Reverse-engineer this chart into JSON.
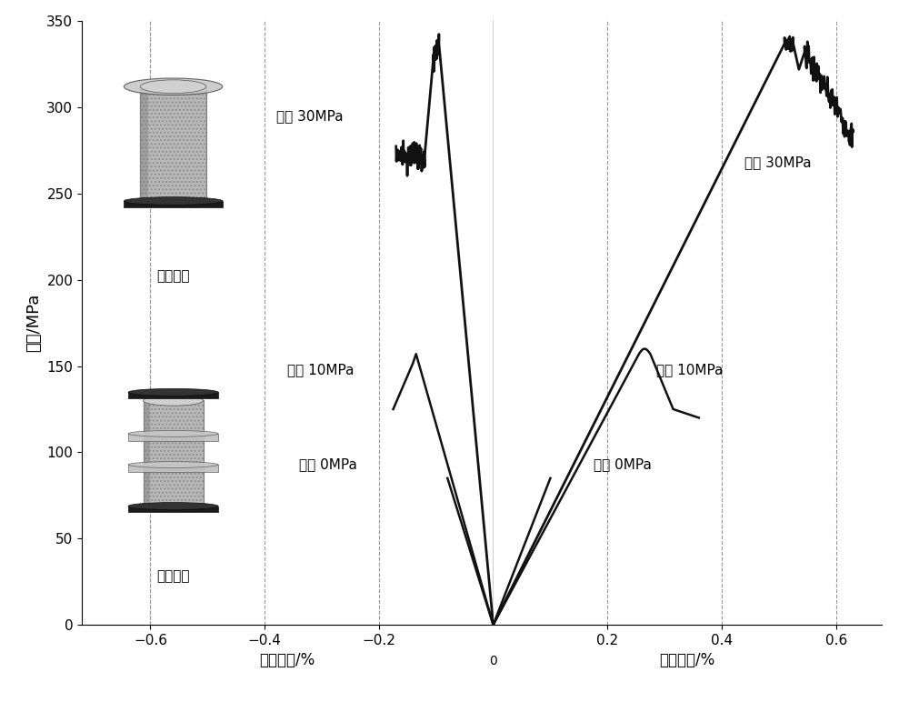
{
  "title": "",
  "ylabel": "应力/MPa",
  "xlabel_left": "侧向应变/%",
  "xlabel_right": "轴向应变/%",
  "ylim": [
    0,
    350
  ],
  "xlim_left": [
    -0.72,
    0
  ],
  "xlim_right": [
    0,
    0.68
  ],
  "background_color": "#ffffff",
  "line_color": "#111111",
  "grid_color": "#999999",
  "label_30MPa_left": "围压 30MPa",
  "label_10MPa_left": "围压 10MPa",
  "label_0MPa_left": "围压 0MPa",
  "label_30MPa_right": "围压 30MPa",
  "label_10MPa_right": "围压 10MPa",
  "label_0MPa_right": "围压 0MPa",
  "text_uniaxial": "单轴压缩",
  "text_triaxial": "三轴压缩",
  "yticks": [
    0,
    50,
    100,
    150,
    200,
    250,
    300,
    350
  ],
  "xticks_left": [
    -0.6,
    -0.4,
    -0.2
  ],
  "xticks_right": [
    0.2,
    0.4,
    0.6
  ],
  "xtick_shared": 0
}
